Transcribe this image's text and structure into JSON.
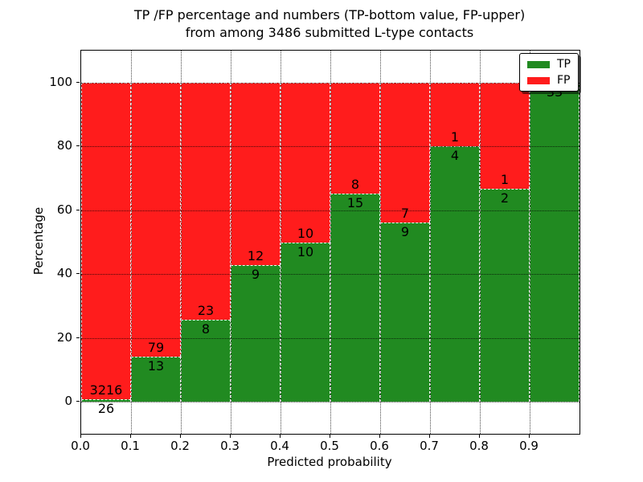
{
  "figure": {
    "title_line1": "TP /FP percentage and numbers (TP-bottom value, FP-upper)",
    "title_line2": "from among 3486 submitted L-type contacts"
  },
  "axes": {
    "xlabel": "Predicted probability",
    "ylabel": "Percentage",
    "x_tick_labels": [
      "0.0",
      "0.1",
      "0.2",
      "0.3",
      "0.4",
      "0.5",
      "0.6",
      "0.7",
      "0.8",
      "0.9"
    ],
    "y_tick_labels": [
      "0",
      "20",
      "40",
      "60",
      "80",
      "100"
    ],
    "y_tick_values": [
      0,
      20,
      40,
      60,
      80,
      100
    ],
    "xlim": [
      0.0,
      1.0
    ],
    "ylim": [
      -10,
      110
    ]
  },
  "legend": {
    "items": [
      {
        "label": "TP",
        "color": "#218a21"
      },
      {
        "label": "FP",
        "color": "#ff1c1c"
      }
    ],
    "position": "upper right"
  },
  "chart_data": {
    "type": "bar",
    "stacked": true,
    "title": "TP /FP percentage and numbers (TP-bottom value, FP-upper) from among 3486 submitted L-type contacts",
    "xlabel": "Predicted probability",
    "ylabel": "Percentage",
    "total_contacts": 3486,
    "bin_edges": [
      0.0,
      0.1,
      0.2,
      0.3,
      0.4,
      0.5,
      0.6,
      0.7,
      0.8,
      0.9,
      1.0
    ],
    "categories": [
      "0.0-0.1",
      "0.1-0.2",
      "0.2-0.3",
      "0.3-0.4",
      "0.4-0.5",
      "0.5-0.6",
      "0.6-0.7",
      "0.7-0.8",
      "0.8-0.9",
      "0.9-1.0"
    ],
    "series": [
      {
        "name": "TP",
        "color": "#218a21",
        "counts": [
          26,
          13,
          8,
          9,
          10,
          15,
          9,
          4,
          2,
          33
        ],
        "percent": [
          0.8,
          14.1,
          25.8,
          42.9,
          50.0,
          65.2,
          56.3,
          80.0,
          66.7,
          100.0
        ]
      },
      {
        "name": "FP",
        "color": "#ff1c1c",
        "counts": [
          3216,
          79,
          23,
          12,
          10,
          8,
          7,
          1,
          1,
          0
        ],
        "percent": [
          99.2,
          85.9,
          74.2,
          57.1,
          50.0,
          34.8,
          43.7,
          20.0,
          33.3,
          0.0
        ],
        "label_visible": [
          true,
          true,
          true,
          true,
          true,
          true,
          true,
          true,
          true,
          false
        ]
      }
    ],
    "grid": true,
    "grid_style": "dotted",
    "legend_position": "upper right",
    "ylim": [
      -10,
      110
    ]
  }
}
